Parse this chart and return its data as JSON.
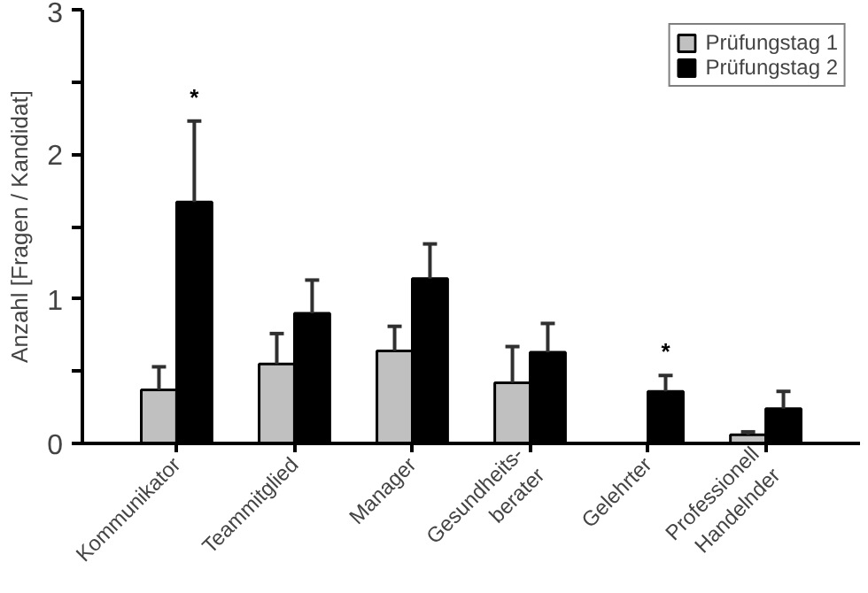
{
  "chart_data": {
    "type": "bar",
    "ylabel": "Anzahl [Fragen / Kandidat]",
    "categories": [
      "Kommunikator",
      "Teammitglied",
      "Manager",
      "Gesundheits-\nberater",
      "Gelehrter",
      "Professionell\nHandelnder"
    ],
    "series": [
      {
        "name": "Prüfungstag 1",
        "color": "#c0c0c0",
        "values": [
          0.37,
          0.55,
          0.64,
          0.42,
          null,
          0.06
        ],
        "errors": [
          [
            0.37,
            0.53
          ],
          [
            0.55,
            0.76
          ],
          [
            0.64,
            0.81
          ],
          [
            0.42,
            0.67
          ],
          null,
          [
            0.06,
            0.08
          ]
        ]
      },
      {
        "name": "Prüfungstag 2",
        "color": "#000000",
        "values": [
          1.67,
          0.9,
          1.14,
          0.63,
          0.36,
          0.24
        ],
        "errors": [
          [
            1.67,
            2.23
          ],
          [
            0.9,
            1.13
          ],
          [
            1.14,
            1.38
          ],
          [
            0.63,
            0.83
          ],
          [
            0.36,
            0.47
          ],
          [
            0.24,
            0.36
          ]
        ]
      }
    ],
    "ylim": [
      0,
      3
    ],
    "yticks": [
      0,
      {
        "value": 0.5,
        "label": null
      },
      1,
      {
        "value": 1.5,
        "label": null
      },
      2,
      {
        "value": 2.5,
        "label": null
      },
      3
    ],
    "annotations": [
      "*",
      "*"
    ],
    "grid": false,
    "legend": "top right"
  }
}
